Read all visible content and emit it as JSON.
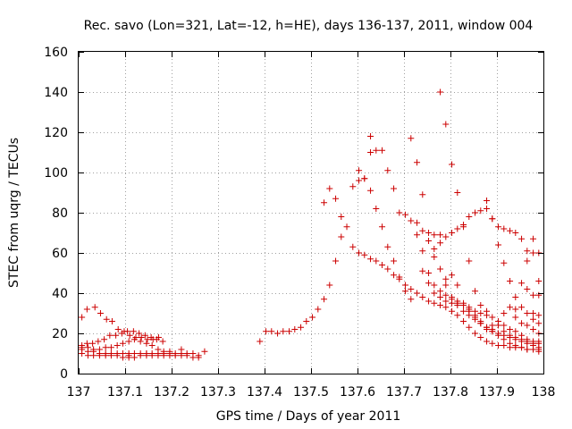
{
  "chart_data": {
    "type": "scatter",
    "title": "Rec. savo (Lon=321, Lat=-12, h=HE), days 136-137, 2011, window 004",
    "xlabel": "GPS time / Days of year 2011",
    "ylabel": "STEC from uqrg / TECUs",
    "xlim": [
      137,
      138
    ],
    "ylim": [
      0,
      160
    ],
    "x_ticks": [
      137,
      137.1,
      137.2,
      137.3,
      137.4,
      137.5,
      137.6,
      137.7,
      137.8,
      137.9,
      138
    ],
    "x_tick_labels": [
      "137",
      "137.1",
      "137.2",
      "137.3",
      "137.4",
      "137.5",
      "137.6",
      "137.7",
      "137.8",
      "137.9",
      "138"
    ],
    "y_ticks": [
      0,
      20,
      40,
      60,
      80,
      100,
      120,
      140,
      160
    ],
    "y_tick_labels": [
      "0",
      "20",
      "40",
      "60",
      "80",
      "100",
      "120",
      "140",
      "160"
    ],
    "grid": true,
    "marker": "plus",
    "color": "#cc0000",
    "points": [
      [
        137.007,
        28
      ],
      [
        137.018,
        32
      ],
      [
        137.035,
        33
      ],
      [
        137.047,
        30
      ],
      [
        137.06,
        27
      ],
      [
        137.072,
        26
      ],
      [
        137.085,
        22
      ],
      [
        137.098,
        21
      ],
      [
        137.11,
        19
      ],
      [
        137.123,
        18
      ],
      [
        137.135,
        18
      ],
      [
        137.148,
        17
      ],
      [
        137.16,
        17
      ],
      [
        137.172,
        18
      ],
      [
        137.007,
        14
      ],
      [
        137.018,
        15
      ],
      [
        137.03,
        15
      ],
      [
        137.042,
        16
      ],
      [
        137.055,
        17
      ],
      [
        137.067,
        19
      ],
      [
        137.08,
        19
      ],
      [
        137.093,
        20
      ],
      [
        137.105,
        21
      ],
      [
        137.118,
        21
      ],
      [
        137.13,
        20
      ],
      [
        137.143,
        19
      ],
      [
        137.156,
        18
      ],
      [
        137.168,
        17
      ],
      [
        137.181,
        16
      ],
      [
        137.007,
        13
      ],
      [
        137.02,
        13
      ],
      [
        137.032,
        12
      ],
      [
        137.045,
        12
      ],
      [
        137.058,
        13
      ],
      [
        137.07,
        13
      ],
      [
        137.083,
        14
      ],
      [
        137.095,
        15
      ],
      [
        137.108,
        16
      ],
      [
        137.12,
        17
      ],
      [
        137.133,
        16
      ],
      [
        137.146,
        15
      ],
      [
        137.158,
        14
      ],
      [
        137.171,
        12
      ],
      [
        137.183,
        11
      ],
      [
        137.007,
        12
      ],
      [
        137.02,
        11
      ],
      [
        137.032,
        11
      ],
      [
        137.045,
        10
      ],
      [
        137.058,
        10
      ],
      [
        137.07,
        10
      ],
      [
        137.083,
        10
      ],
      [
        137.095,
        10
      ],
      [
        137.108,
        10
      ],
      [
        137.12,
        10
      ],
      [
        137.133,
        10
      ],
      [
        137.146,
        10
      ],
      [
        137.158,
        10
      ],
      [
        137.171,
        10
      ],
      [
        137.183,
        10
      ],
      [
        137.196,
        10
      ],
      [
        137.208,
        10
      ],
      [
        137.221,
        10
      ],
      [
        137.233,
        10
      ],
      [
        137.246,
        10
      ],
      [
        137.258,
        9
      ],
      [
        137.271,
        11
      ],
      [
        137.007,
        10
      ],
      [
        137.02,
        9
      ],
      [
        137.032,
        9
      ],
      [
        137.045,
        9
      ],
      [
        137.058,
        9
      ],
      [
        137.07,
        9
      ],
      [
        137.083,
        9
      ],
      [
        137.095,
        8
      ],
      [
        137.108,
        8
      ],
      [
        137.12,
        8
      ],
      [
        137.133,
        9
      ],
      [
        137.146,
        9
      ],
      [
        137.158,
        9
      ],
      [
        137.171,
        9
      ],
      [
        137.183,
        9
      ],
      [
        137.196,
        9
      ],
      [
        137.208,
        9
      ],
      [
        137.221,
        9
      ],
      [
        137.233,
        9
      ],
      [
        137.246,
        8
      ],
      [
        137.258,
        8
      ],
      [
        137.108,
        9
      ],
      [
        137.146,
        10
      ],
      [
        137.196,
        11
      ],
      [
        137.221,
        12
      ],
      [
        137.39,
        16
      ],
      [
        137.403,
        21
      ],
      [
        137.415,
        21
      ],
      [
        137.428,
        20
      ],
      [
        137.44,
        21
      ],
      [
        137.453,
        21
      ],
      [
        137.465,
        22
      ],
      [
        137.478,
        23
      ],
      [
        137.49,
        26
      ],
      [
        137.503,
        28
      ],
      [
        137.515,
        32
      ],
      [
        137.528,
        37
      ],
      [
        137.54,
        44
      ],
      [
        137.553,
        56
      ],
      [
        137.565,
        68
      ],
      [
        137.577,
        73
      ],
      [
        137.59,
        63
      ],
      [
        137.603,
        60
      ],
      [
        137.615,
        59
      ],
      [
        137.628,
        57
      ],
      [
        137.64,
        56
      ],
      [
        137.653,
        54
      ],
      [
        137.665,
        52
      ],
      [
        137.678,
        49
      ],
      [
        137.69,
        47
      ],
      [
        137.703,
        44
      ],
      [
        137.715,
        42
      ],
      [
        137.728,
        40
      ],
      [
        137.74,
        38
      ],
      [
        137.753,
        36
      ],
      [
        137.765,
        35
      ],
      [
        137.778,
        34
      ],
      [
        137.79,
        33
      ],
      [
        137.803,
        31
      ],
      [
        137.815,
        29
      ],
      [
        137.828,
        26
      ],
      [
        137.84,
        23
      ],
      [
        137.853,
        20
      ],
      [
        137.865,
        18
      ],
      [
        137.878,
        16
      ],
      [
        137.89,
        15
      ],
      [
        137.903,
        14
      ],
      [
        137.915,
        14
      ],
      [
        137.928,
        13
      ],
      [
        137.94,
        13
      ],
      [
        137.953,
        13
      ],
      [
        137.965,
        12
      ],
      [
        137.978,
        12
      ],
      [
        137.99,
        12
      ],
      [
        137.528,
        85
      ],
      [
        137.54,
        92
      ],
      [
        137.553,
        87
      ],
      [
        137.565,
        78
      ],
      [
        137.59,
        93
      ],
      [
        137.603,
        101
      ],
      [
        137.615,
        97
      ],
      [
        137.628,
        91
      ],
      [
        137.64,
        82
      ],
      [
        137.653,
        73
      ],
      [
        137.665,
        63
      ],
      [
        137.678,
        56
      ],
      [
        137.69,
        48
      ],
      [
        137.703,
        41
      ],
      [
        137.715,
        37
      ],
      [
        137.603,
        96
      ],
      [
        137.615,
        97
      ],
      [
        137.628,
        118
      ],
      [
        137.64,
        111
      ],
      [
        137.653,
        111
      ],
      [
        137.665,
        101
      ],
      [
        137.678,
        92
      ],
      [
        137.69,
        80
      ],
      [
        137.703,
        79
      ],
      [
        137.715,
        76
      ],
      [
        137.728,
        75
      ],
      [
        137.74,
        71
      ],
      [
        137.753,
        70
      ],
      [
        137.765,
        69
      ],
      [
        137.778,
        69
      ],
      [
        137.79,
        68
      ],
      [
        137.803,
        70
      ],
      [
        137.815,
        72
      ],
      [
        137.828,
        73
      ],
      [
        137.84,
        78
      ],
      [
        137.853,
        80
      ],
      [
        137.865,
        81
      ],
      [
        137.878,
        82
      ],
      [
        137.89,
        77
      ],
      [
        137.903,
        73
      ],
      [
        137.915,
        72
      ],
      [
        137.928,
        71
      ],
      [
        137.94,
        70
      ],
      [
        137.953,
        67
      ],
      [
        137.965,
        61
      ],
      [
        137.978,
        60
      ],
      [
        137.99,
        60
      ],
      [
        137.628,
        110
      ],
      [
        137.715,
        117
      ],
      [
        137.728,
        105
      ],
      [
        137.74,
        89
      ],
      [
        137.753,
        66
      ],
      [
        137.765,
        58
      ],
      [
        137.778,
        52
      ],
      [
        137.79,
        44
      ],
      [
        137.803,
        38
      ],
      [
        137.815,
        34
      ],
      [
        137.828,
        31
      ],
      [
        137.84,
        29
      ],
      [
        137.853,
        27
      ],
      [
        137.865,
        25
      ],
      [
        137.878,
        23
      ],
      [
        137.89,
        22
      ],
      [
        137.903,
        20
      ],
      [
        137.915,
        19
      ],
      [
        137.928,
        18
      ],
      [
        137.94,
        17
      ],
      [
        137.953,
        16
      ],
      [
        137.965,
        15
      ],
      [
        137.978,
        14
      ],
      [
        137.99,
        13
      ],
      [
        137.778,
        140
      ],
      [
        137.79,
        124
      ],
      [
        137.803,
        104
      ],
      [
        137.815,
        90
      ],
      [
        137.828,
        74
      ],
      [
        137.84,
        56
      ],
      [
        137.853,
        41
      ],
      [
        137.865,
        34
      ],
      [
        137.878,
        31
      ],
      [
        137.89,
        24
      ],
      [
        137.903,
        24
      ],
      [
        137.915,
        21
      ],
      [
        137.928,
        19
      ],
      [
        137.94,
        18
      ],
      [
        137.953,
        17
      ],
      [
        137.965,
        16
      ],
      [
        137.978,
        15
      ],
      [
        137.99,
        15
      ],
      [
        137.878,
        86
      ],
      [
        137.89,
        77
      ],
      [
        137.903,
        64
      ],
      [
        137.915,
        55
      ],
      [
        137.928,
        46
      ],
      [
        137.94,
        38
      ],
      [
        137.953,
        33
      ],
      [
        137.965,
        30
      ],
      [
        137.978,
        27
      ],
      [
        137.99,
        25
      ],
      [
        137.728,
        69
      ],
      [
        137.74,
        61
      ],
      [
        137.753,
        50
      ],
      [
        137.765,
        44
      ],
      [
        137.778,
        41
      ],
      [
        137.79,
        39
      ],
      [
        137.803,
        37
      ],
      [
        137.815,
        35
      ],
      [
        137.828,
        34
      ],
      [
        137.84,
        33
      ],
      [
        137.853,
        31
      ],
      [
        137.865,
        30
      ],
      [
        137.878,
        29
      ],
      [
        137.89,
        28
      ],
      [
        137.903,
        26
      ],
      [
        137.915,
        24
      ],
      [
        137.928,
        22
      ],
      [
        137.94,
        21
      ],
      [
        137.953,
        19
      ],
      [
        137.965,
        17
      ],
      [
        137.978,
        16
      ],
      [
        137.99,
        16
      ],
      [
        137.74,
        51
      ],
      [
        137.753,
        45
      ],
      [
        137.765,
        40
      ],
      [
        137.778,
        38
      ],
      [
        137.79,
        36
      ],
      [
        137.803,
        35
      ],
      [
        137.815,
        36
      ],
      [
        137.828,
        34
      ],
      [
        137.84,
        31
      ],
      [
        137.853,
        28
      ],
      [
        137.865,
        25
      ],
      [
        137.878,
        22
      ],
      [
        137.89,
        21
      ],
      [
        137.903,
        19
      ],
      [
        137.915,
        17
      ],
      [
        137.928,
        15
      ],
      [
        137.94,
        14
      ],
      [
        137.953,
        13
      ],
      [
        137.965,
        12
      ],
      [
        137.978,
        12
      ],
      [
        137.99,
        11
      ],
      [
        137.765,
        62
      ],
      [
        137.778,
        65
      ],
      [
        137.79,
        47
      ],
      [
        137.803,
        49
      ],
      [
        137.815,
        44
      ],
      [
        137.828,
        35
      ],
      [
        137.84,
        32
      ],
      [
        137.853,
        29
      ],
      [
        137.865,
        26
      ],
      [
        137.878,
        23
      ],
      [
        137.89,
        21
      ],
      [
        137.928,
        33
      ],
      [
        137.94,
        32
      ],
      [
        137.953,
        25
      ],
      [
        137.965,
        24
      ],
      [
        137.978,
        22
      ],
      [
        137.99,
        20
      ],
      [
        137.965,
        56
      ],
      [
        137.978,
        67
      ],
      [
        137.99,
        46
      ],
      [
        137.978,
        39
      ],
      [
        137.99,
        39
      ],
      [
        137.965,
        42
      ],
      [
        137.978,
        30
      ],
      [
        137.99,
        29
      ],
      [
        137.953,
        45
      ],
      [
        137.94,
        28
      ],
      [
        137.915,
        30
      ]
    ]
  }
}
